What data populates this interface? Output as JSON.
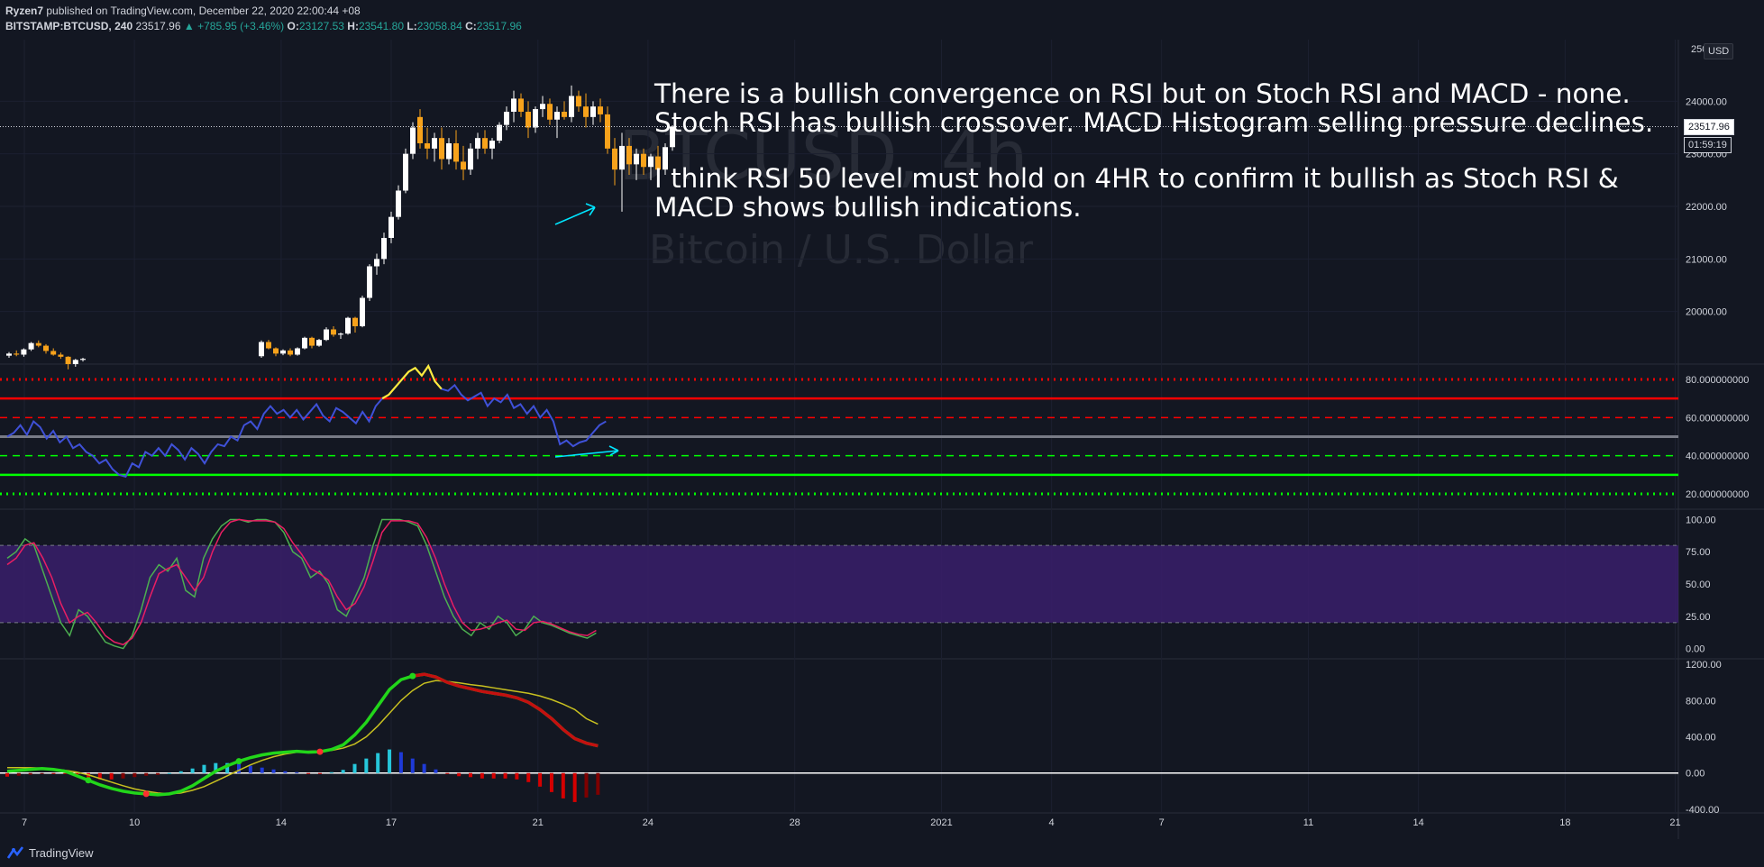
{
  "header": {
    "author": "Ryzen7",
    "published": "published on TradingView.com, December 22, 2020 22:00:44 +08",
    "symbol": "BITSTAMP:BTCUSD, 240",
    "last": "23517.96",
    "change_arrow": "▲",
    "change": "+785.95 (+3.46%)",
    "o_label": "O:",
    "o": "23127.53",
    "h_label": "H:",
    "h": "23541.80",
    "l_label": "L:",
    "l": "23058.84",
    "c_label": "C:",
    "c": "23517.96"
  },
  "watermark": {
    "symbol": "BTCUSD, 4h",
    "name": "Bitcoin / U.S. Dollar"
  },
  "annotation": {
    "line1": "There is a bullish convergence on RSI but on Stoch RSI and MACD - none.",
    "line2": "Stoch RSI has bullish crossover. MACD Histogram selling pressure declines.",
    "line3": "I think RSI 50 level must hold on 4HR to confirm it bullish as Stoch RSI &",
    "line4": "MACD shows bullish indications."
  },
  "price_axis": {
    "currency": "USD",
    "current_price": "23517.96",
    "countdown": "01:59:19",
    "top_label": "250"
  },
  "footer": {
    "brand": "TradingView",
    "logo_icon": "tradingview-logo-icon"
  },
  "colors": {
    "background": "#131722",
    "up": "#ffffff",
    "down": "#f7a21b",
    "rsi": "#3f51d8",
    "rsi_ob": "#ffeb3b",
    "rsi_red": "#ff0000",
    "stoch_k": "#e91e63",
    "stoch_d": "#4caf50",
    "stoch_band": "#3a1f6b",
    "macd": "#22d61a",
    "signal": "#c8c020",
    "hist_pos_strong": "#26c6da",
    "hist_pos_weak": "#1e3ad8",
    "hist_neg_strong": "#d50000",
    "hist_neg_weak": "#7f0000"
  },
  "chart_data": [
    {
      "type": "candlestick",
      "title": "BITSTAMP:BTCUSD, 240",
      "y_ticks": [
        20000,
        21000,
        22000,
        23000,
        24000
      ],
      "ylim": [
        19000,
        25000
      ],
      "x_ticks": [
        "7",
        "10",
        "14",
        "17",
        "21",
        "24",
        "28",
        "2021",
        "4",
        "7",
        "11",
        "14",
        "18",
        "21"
      ],
      "x_tick_days": [
        7,
        10,
        14,
        17,
        21,
        24,
        28,
        32,
        35,
        38,
        42,
        45,
        49,
        52
      ],
      "ohlc": [
        [
          19160,
          19230,
          19120,
          19200
        ],
        [
          19200,
          19260,
          19150,
          19180
        ],
        [
          19180,
          19300,
          19140,
          19280
        ],
        [
          19280,
          19420,
          19250,
          19400
        ],
        [
          19400,
          19450,
          19320,
          19350
        ],
        [
          19350,
          19380,
          19200,
          19250
        ],
        [
          19250,
          19300,
          19160,
          19180
        ],
        [
          19180,
          19220,
          19100,
          19140
        ],
        [
          19140,
          19150,
          18900,
          19000
        ],
        [
          19000,
          19100,
          18950,
          19080
        ],
        [
          19080,
          19120,
          19050,
          19100
        ],
        [
          19150,
          19450,
          19120,
          19420
        ],
        [
          19420,
          19460,
          19280,
          19300
        ],
        [
          19300,
          19320,
          19150,
          19200
        ],
        [
          19200,
          19280,
          19170,
          19260
        ],
        [
          19260,
          19300,
          19150,
          19180
        ],
        [
          19180,
          19320,
          19160,
          19300
        ],
        [
          19300,
          19520,
          19280,
          19500
        ],
        [
          19500,
          19520,
          19300,
          19350
        ],
        [
          19350,
          19480,
          19330,
          19460
        ],
        [
          19460,
          19700,
          19440,
          19660
        ],
        [
          19660,
          19720,
          19520,
          19560
        ],
        [
          19560,
          19600,
          19480,
          19580
        ],
        [
          19580,
          19900,
          19560,
          19880
        ],
        [
          19880,
          19900,
          19600,
          19720
        ],
        [
          19720,
          20300,
          19700,
          20260
        ],
        [
          20260,
          20900,
          20200,
          20860
        ],
        [
          20860,
          21100,
          20700,
          21000
        ],
        [
          21000,
          21500,
          20900,
          21400
        ],
        [
          21400,
          21900,
          21300,
          21800
        ],
        [
          21800,
          22400,
          21750,
          22300
        ],
        [
          22300,
          23100,
          22250,
          23000
        ],
        [
          23000,
          23600,
          22900,
          23500
        ],
        [
          23700,
          23850,
          23100,
          23200
        ],
        [
          23200,
          23500,
          22900,
          23100
        ],
        [
          23100,
          23400,
          22850,
          23300
        ],
        [
          23300,
          23500,
          22700,
          22900
        ],
        [
          22900,
          23300,
          22800,
          23200
        ],
        [
          23200,
          23450,
          22700,
          22850
        ],
        [
          22850,
          23150,
          22500,
          22700
        ],
        [
          22700,
          23200,
          22600,
          23100
        ],
        [
          23100,
          23400,
          22900,
          23300
        ],
        [
          23300,
          23450,
          23000,
          23100
        ],
        [
          23100,
          23300,
          22900,
          23250
        ],
        [
          23250,
          23600,
          23200,
          23550
        ],
        [
          23550,
          23900,
          23450,
          23800
        ],
        [
          23800,
          24200,
          23600,
          24050
        ],
        [
          24050,
          24150,
          23700,
          23800
        ],
        [
          23800,
          24000,
          23300,
          23500
        ],
        [
          23500,
          23900,
          23400,
          23850
        ],
        [
          23850,
          24100,
          23700,
          23950
        ],
        [
          23950,
          24050,
          23550,
          23650
        ],
        [
          23650,
          23900,
          23300,
          23800
        ],
        [
          23800,
          24000,
          23650,
          23700
        ],
        [
          23700,
          24300,
          23600,
          24100
        ],
        [
          24100,
          24200,
          23800,
          23900
        ],
        [
          23900,
          24150,
          23500,
          23700
        ],
        [
          23700,
          24000,
          23550,
          23900
        ],
        [
          23900,
          24050,
          23600,
          23750
        ],
        [
          23750,
          23900,
          23000,
          23100
        ],
        [
          23100,
          23300,
          22400,
          22700
        ],
        [
          22700,
          23400,
          21900,
          23150
        ],
        [
          23150,
          23300,
          22600,
          22800
        ],
        [
          22800,
          23100,
          22500,
          23000
        ],
        [
          23000,
          23100,
          22600,
          22750
        ],
        [
          22750,
          23000,
          22500,
          22950
        ],
        [
          22950,
          23150,
          22550,
          22700
        ],
        [
          22700,
          23200,
          22600,
          23127
        ],
        [
          23127,
          23542,
          23059,
          23518
        ]
      ]
    },
    {
      "type": "line",
      "title": "RSI",
      "y_ticks": [
        20,
        40,
        60,
        80
      ],
      "ylim": [
        12,
        88
      ],
      "levels": [
        20,
        30,
        40,
        50,
        60,
        70,
        80
      ],
      "values": [
        50,
        52,
        56,
        51,
        58,
        55,
        49,
        53,
        47,
        50,
        44,
        46,
        42,
        40,
        36,
        38,
        33,
        30,
        29,
        36,
        34,
        42,
        40,
        44,
        40,
        46,
        43,
        38,
        44,
        41,
        36,
        42,
        46,
        45,
        50,
        48,
        56,
        58,
        54,
        62,
        66,
        62,
        64,
        60,
        64,
        59,
        63,
        67,
        61,
        58,
        65,
        63,
        60,
        57,
        63,
        58,
        66,
        70,
        72,
        76,
        80,
        84,
        86,
        82,
        87,
        79,
        75,
        74,
        77,
        72,
        69,
        71,
        73,
        66,
        70,
        68,
        72,
        65,
        67,
        62,
        66,
        60,
        64,
        58,
        46,
        48,
        45,
        47,
        48,
        52,
        56,
        58
      ]
    },
    {
      "type": "line",
      "title": "Stoch RSI",
      "y_ticks": [
        0,
        25,
        50,
        75,
        100
      ],
      "ylim": [
        -8,
        108
      ],
      "band": [
        20,
        80
      ],
      "series": [
        {
          "values": [
            70,
            75,
            85,
            80,
            60,
            40,
            20,
            10,
            30,
            25,
            15,
            5,
            2,
            0,
            10,
            30,
            55,
            65,
            60,
            70,
            45,
            40,
            70,
            85,
            95,
            100,
            100,
            98,
            100,
            100,
            98,
            90,
            75,
            70,
            55,
            60,
            50,
            30,
            25,
            40,
            55,
            80,
            100,
            100,
            100,
            98,
            95,
            80,
            60,
            40,
            25,
            15,
            10,
            20,
            15,
            25,
            20,
            10,
            15,
            25,
            20,
            18,
            15,
            12,
            10,
            8,
            12
          ]
        },
        {
          "values": [
            65,
            70,
            80,
            82,
            70,
            55,
            35,
            20,
            25,
            28,
            20,
            10,
            5,
            3,
            8,
            20,
            40,
            58,
            62,
            65,
            55,
            45,
            55,
            75,
            90,
            98,
            100,
            99,
            99,
            99,
            98,
            93,
            82,
            73,
            62,
            58,
            53,
            40,
            30,
            35,
            48,
            68,
            90,
            99,
            99,
            99,
            97,
            86,
            70,
            50,
            33,
            20,
            14,
            15,
            17,
            20,
            22,
            15,
            14,
            20,
            21,
            19,
            16,
            13,
            11,
            10,
            14
          ]
        }
      ]
    },
    {
      "type": "bar+line",
      "title": "MACD",
      "y_ticks": [
        -400,
        0,
        400,
        800,
        1200
      ],
      "ylim": [
        -440,
        1260
      ],
      "macd": [
        20,
        30,
        40,
        50,
        40,
        20,
        -30,
        -80,
        -130,
        -170,
        -200,
        -220,
        -230,
        -240,
        -230,
        -200,
        -140,
        -60,
        20,
        80,
        130,
        170,
        200,
        220,
        230,
        240,
        230,
        235,
        260,
        310,
        420,
        560,
        740,
        920,
        1030,
        1070,
        1090,
        1060,
        1000,
        960,
        930,
        900,
        880,
        860,
        830,
        780,
        700,
        600,
        480,
        380,
        330,
        300
      ],
      "signal": [
        60,
        60,
        58,
        55,
        45,
        30,
        10,
        -20,
        -60,
        -100,
        -140,
        -175,
        -200,
        -220,
        -230,
        -220,
        -190,
        -150,
        -90,
        -30,
        30,
        90,
        140,
        180,
        210,
        230,
        240,
        245,
        250,
        275,
        320,
        400,
        520,
        660,
        800,
        910,
        990,
        1020,
        1010,
        995,
        975,
        960,
        940,
        920,
        900,
        880,
        850,
        810,
        760,
        700,
        600,
        540
      ],
      "histogram": [
        -40,
        -30,
        -18,
        -5,
        -5,
        -10,
        -40,
        -60,
        -70,
        -70,
        -60,
        -45,
        -30,
        -20,
        0,
        20,
        50,
        90,
        110,
        110,
        100,
        80,
        60,
        40,
        20,
        10,
        -10,
        -10,
        10,
        35,
        100,
        160,
        220,
        260,
        230,
        160,
        100,
        40,
        -10,
        -35,
        -45,
        -60,
        -60,
        -60,
        -70,
        -100,
        -150,
        -210,
        -280,
        -320,
        -270,
        -240
      ]
    }
  ]
}
